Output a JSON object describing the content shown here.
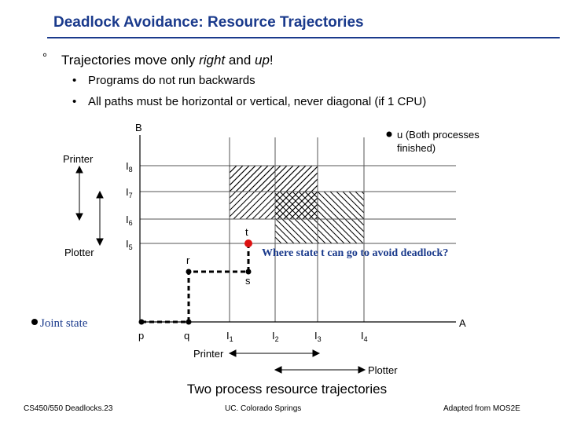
{
  "slide": {
    "title": "Deadlock Avoidance: Resource Trajectories",
    "bullet_marker": "°",
    "bullet": {
      "prefix": "Trajectories move only ",
      "italic1": "right",
      "mid": " and ",
      "italic2": "up",
      "suffix": "!"
    },
    "sub_marker": "•",
    "sub_bullets": [
      "Programs do not run backwards",
      "All paths must be horizontal or vertical, never diagonal (if 1 CPU)"
    ],
    "caption": "Two process resource trajectories",
    "footer": {
      "left": "CS450/550 Deadlocks.23",
      "center": "UC. Colorado Springs",
      "right": "Adapted from MOS2E"
    }
  },
  "diagram": {
    "axis_a_label": "A",
    "axis_b_label": "B",
    "x_ticks": [
      "I1",
      "I2",
      "I3",
      "I4"
    ],
    "y_ticks": [
      "I5",
      "I6",
      "I7",
      "I8"
    ],
    "points": {
      "p": "p",
      "q": "q",
      "r": "r",
      "s": "s",
      "t": "t",
      "u": "u (Both processes finished)"
    },
    "u_label_line1": "u (Both processes",
    "u_label_line2": "finished)",
    "printer_b": "Printer",
    "plotter_b": "Plotter",
    "printer_a": "Printer",
    "plotter_a": "Plotter",
    "question": "Where state t can go to avoid deadlock?",
    "joint_state": "Joint state",
    "question_color": "#1a3a8c",
    "t_dot_color": "#dd1111"
  }
}
